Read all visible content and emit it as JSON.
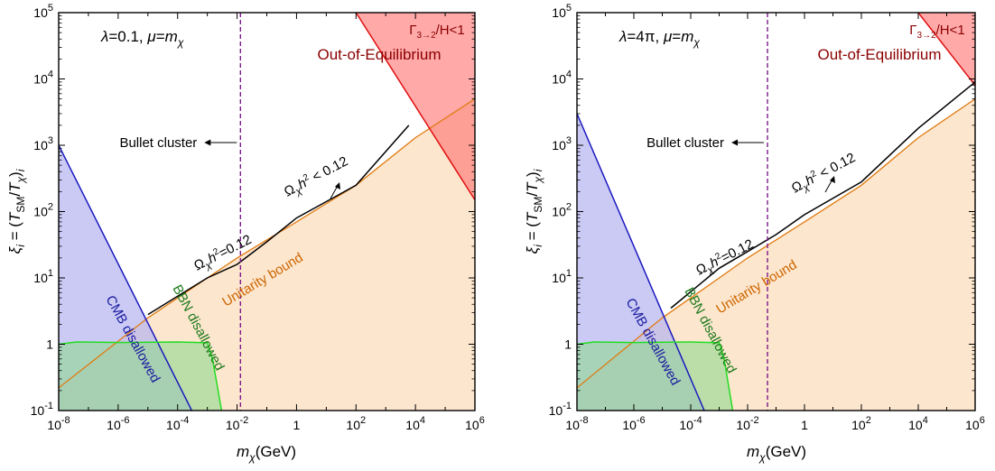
{
  "chart_data": [
    {
      "type": "area",
      "title": "λ=0.1, μ=m_χ",
      "xlabel": "m_χ(GeV)",
      "ylabel": "ξ_i = (T_SM/T_χ)_i",
      "x_scale": "log",
      "y_scale": "log",
      "xlim": [
        1e-08,
        1000000.0
      ],
      "ylim": [
        0.1,
        100000.0
      ],
      "x_ticks": [
        {
          "exp": "-8"
        },
        {
          "exp": "-6"
        },
        {
          "exp": "-4"
        },
        {
          "exp": "-2"
        },
        {
          "plain": "1"
        },
        {
          "exp": "2"
        },
        {
          "exp": "4"
        },
        {
          "exp": "6"
        }
      ],
      "y_ticks": [
        {
          "exp": "-1"
        },
        {
          "plain": "1"
        },
        {
          "exp": "1"
        },
        {
          "exp": "2"
        },
        {
          "exp": "3"
        },
        {
          "exp": "4"
        },
        {
          "exp": "5"
        }
      ],
      "series": [
        {
          "name": "CMB disallowed",
          "color": "#1a1abf",
          "fill": "#b4b4f0",
          "boundary": [
            [
              1e-08,
              1000
            ],
            [
              0.0003,
              0.1
            ]
          ]
        },
        {
          "name": "BBN disallowed",
          "color": "#22dd22",
          "fill": "#90d890",
          "boundary": [
            [
              1e-08,
              1.0
            ],
            [
              4e-08,
              1.08
            ],
            [
              1e-06,
              1.06
            ],
            [
              0.0001,
              1.08
            ],
            [
              0.001,
              1.05
            ],
            [
              0.0015,
              0.6
            ],
            [
              0.003,
              0.1
            ]
          ]
        },
        {
          "name": "Unitarity bound",
          "color": "#e07a10",
          "fill": "#fde2c6",
          "boundary": [
            [
              1e-08,
              0.22
            ],
            [
              1e-05,
              2.5
            ],
            [
              0.01,
              20
            ],
            [
              1,
              70
            ],
            [
              100.0,
              250
            ],
            [
              10000.0,
              1300
            ],
            [
              1000000.0,
              5000
            ]
          ]
        },
        {
          "name": "Ω_χh²=0.12",
          "color": "#000000",
          "boundary": [
            [
              1e-05,
              2.8
            ],
            [
              0.001,
              10
            ],
            [
              0.01,
              16
            ],
            [
              0.1,
              35
            ],
            [
              1,
              80
            ],
            [
              100.0,
              250
            ],
            [
              6000.0,
              2000
            ]
          ]
        },
        {
          "name": "Γ_3→2/H<1",
          "color": "#e01010",
          "fill": "#ff7070",
          "boundary": [
            [
              100.0,
              100000.0
            ],
            [
              1000000.0,
              150
            ]
          ]
        }
      ],
      "bullet_cluster_x": 0.013,
      "annotations": {
        "gamma": "Γ_3→2/H<1",
        "ooe": "Out-of-Equilibrium",
        "bullet": "Bullet cluster",
        "relic_lt": "Ω_χh²< 0.12",
        "relic_eq": "Ω_χh²=0.12",
        "unitarity": "Unitarity bound",
        "cmb": "CMB disallowed",
        "bbn": "BBN disallowed"
      }
    },
    {
      "type": "area",
      "title": "λ=4π, μ=m_χ",
      "xlabel": "m_χ(GeV)",
      "ylabel": "ξ_i = (T_SM/T_χ)_i",
      "x_scale": "log",
      "y_scale": "log",
      "xlim": [
        1e-08,
        1000000.0
      ],
      "ylim": [
        0.1,
        100000.0
      ],
      "x_ticks": [
        {
          "exp": "-8"
        },
        {
          "exp": "-6"
        },
        {
          "exp": "-4"
        },
        {
          "exp": "-2"
        },
        {
          "plain": "1"
        },
        {
          "exp": "2"
        },
        {
          "exp": "4"
        },
        {
          "exp": "6"
        }
      ],
      "y_ticks": [
        {
          "exp": "-1"
        },
        {
          "plain": "1"
        },
        {
          "exp": "1"
        },
        {
          "exp": "2"
        },
        {
          "exp": "3"
        },
        {
          "exp": "4"
        },
        {
          "exp": "5"
        }
      ],
      "series": [
        {
          "name": "CMB disallowed",
          "color": "#1a1abf",
          "fill": "#b4b4f0",
          "boundary": [
            [
              1e-08,
              3000
            ],
            [
              0.0003,
              0.1
            ]
          ]
        },
        {
          "name": "BBN disallowed",
          "color": "#22dd22",
          "fill": "#90d890",
          "boundary": [
            [
              1e-08,
              1.0
            ],
            [
              4e-08,
              1.08
            ],
            [
              1e-06,
              1.06
            ],
            [
              0.0001,
              1.08
            ],
            [
              0.001,
              1.05
            ],
            [
              0.0015,
              0.6
            ],
            [
              0.003,
              0.1
            ]
          ]
        },
        {
          "name": "Unitarity bound",
          "color": "#e07a10",
          "fill": "#fde2c6",
          "boundary": [
            [
              1e-08,
              0.22
            ],
            [
              1e-05,
              2.5
            ],
            [
              0.01,
              20
            ],
            [
              1,
              70
            ],
            [
              100.0,
              250
            ],
            [
              10000.0,
              1300
            ],
            [
              1000000.0,
              5000
            ]
          ]
        },
        {
          "name": "Ω_χh²=0.12",
          "color": "#000000",
          "boundary": [
            [
              2e-05,
              3.5
            ],
            [
              0.001,
              14
            ],
            [
              0.01,
              25
            ],
            [
              0.1,
              45
            ],
            [
              1,
              90
            ],
            [
              100.0,
              280
            ],
            [
              10000.0,
              1800
            ],
            [
              1000000.0,
              9000
            ]
          ]
        },
        {
          "name": "Γ_3→2/H<1",
          "color": "#e01010",
          "fill": "#ff7070",
          "boundary": [
            [
              10000.0,
              100000.0
            ],
            [
              1000000.0,
              8000
            ]
          ]
        }
      ],
      "bullet_cluster_x": 0.05,
      "annotations": {
        "gamma": "Γ_3→2/H<1",
        "ooe": "Out-of-Equilibrium",
        "bullet": "Bullet cluster",
        "relic_lt": "Ω_χh²< 0.12",
        "relic_eq": "Ω_χh²=0.12",
        "unitarity": "Unitarity bound",
        "cmb": "CMB disallowed",
        "bbn": "BBN disallowed"
      }
    }
  ]
}
